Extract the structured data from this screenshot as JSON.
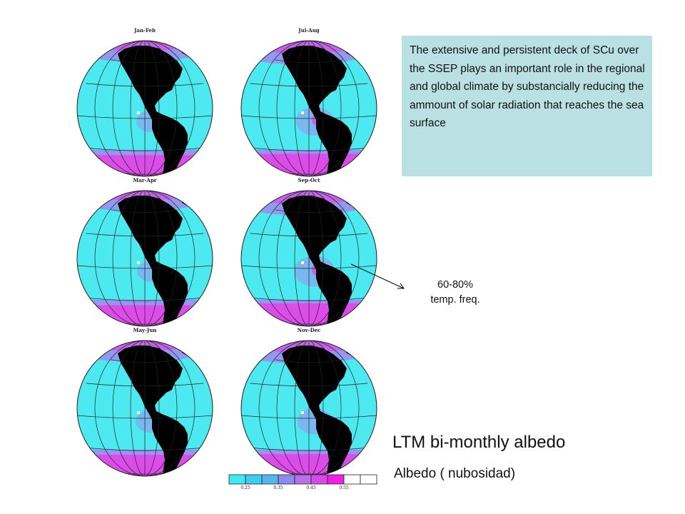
{
  "panels": [
    {
      "label": "Jan-Feb",
      "pink_level": 0.45
    },
    {
      "label": "Jul-Aug",
      "pink_level": 0.75
    },
    {
      "label": "Mar-Apr",
      "pink_level": 0.4
    },
    {
      "label": "Sep-Oct",
      "pink_level": 0.85
    },
    {
      "label": "May-Jun",
      "pink_level": 0.5
    },
    {
      "label": "Nov-Dec",
      "pink_level": 0.65
    }
  ],
  "info_text": "The extensive and persistent deck of SCu over the SSEP plays an important role in the regional and global climate by substancially reducing the ammount of solar radiation that reaches the sea surface",
  "annotation": {
    "line1": "60-80%",
    "line2": "temp. freq."
  },
  "title": "LTM bi-monthly albedo",
  "subtitle": "Albedo ( nubosidad)",
  "colorbar": {
    "colors": [
      "#3fe9f3",
      "#3ccdf0",
      "#55b6ee",
      "#8a8cf0",
      "#b670ee",
      "#d84ae8",
      "#f01ee6",
      "#ffffff",
      "#ffffff"
    ],
    "ticks": [
      "0.25",
      "0.35",
      "0.45",
      "0.55"
    ]
  },
  "colors": {
    "ocean": "#4ceaf0",
    "land": "#000000",
    "pink": "#e83fe6",
    "purple": "#9f8cef",
    "info_bg": "#b9e0e3"
  }
}
